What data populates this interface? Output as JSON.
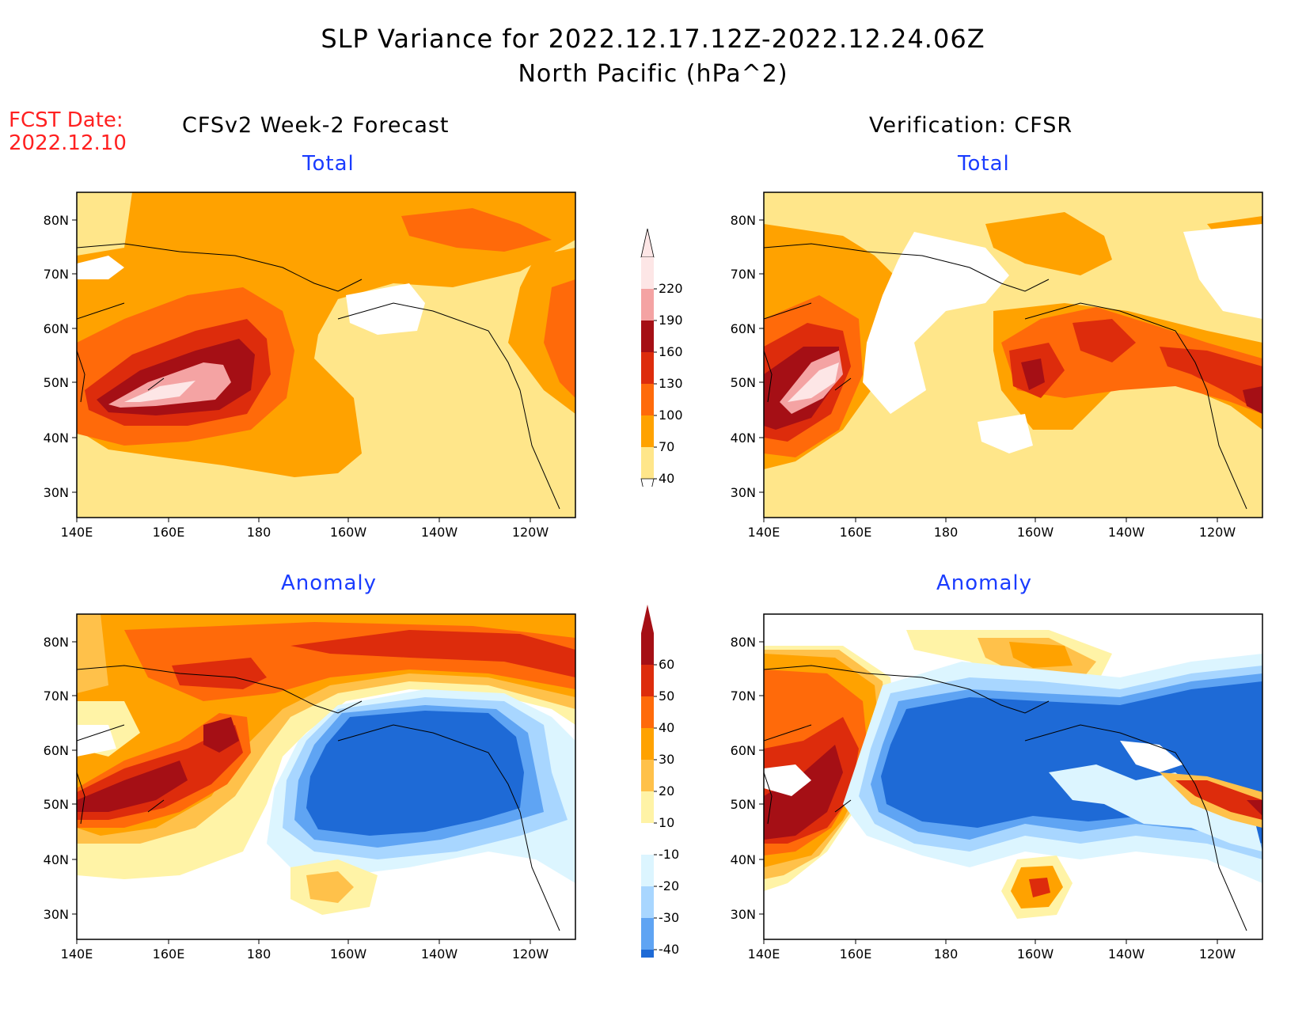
{
  "title": "SLP Variance for 2022.12.17.12Z-2022.12.24.06Z",
  "subtitle": "North Pacific (hPa^2)",
  "fcst_date_label": "FCST Date:",
  "fcst_date_value": "2022.12.10",
  "left_header": "CFSv2 Week-2 Forecast",
  "right_header": "Verification: CFSR",
  "panels": {
    "tl": "Total",
    "tr": "Total",
    "bl": "Anomaly",
    "br": "Anomaly"
  },
  "axes": {
    "lat_labels": [
      "80N",
      "70N",
      "60N",
      "50N",
      "40N",
      "30N"
    ],
    "lon_labels": [
      "140E",
      "160E",
      "180",
      "160W",
      "140W",
      "120W"
    ]
  },
  "colorbar_total": {
    "labels": [
      "220",
      "190",
      "160",
      "130",
      "100",
      "70",
      "40"
    ],
    "colors": [
      "#fde6e6",
      "#f4a3a3",
      "#a50f15",
      "#dd2c0c",
      "#ff6a0a",
      "#ffa200",
      "#ffe68a"
    ]
  },
  "colorbar_anomaly": {
    "labels": [
      "60",
      "50",
      "40",
      "30",
      "20",
      "10",
      "-10",
      "-20",
      "-30",
      "-40"
    ],
    "colors": [
      "#a50f15",
      "#dd2c0c",
      "#ff6a0a",
      "#ffa200",
      "#ffc14a",
      "#fff3a6",
      "#ffffff",
      "#dcf5ff",
      "#a8d6ff",
      "#5fa4f3",
      "#1e6ad6"
    ]
  }
}
